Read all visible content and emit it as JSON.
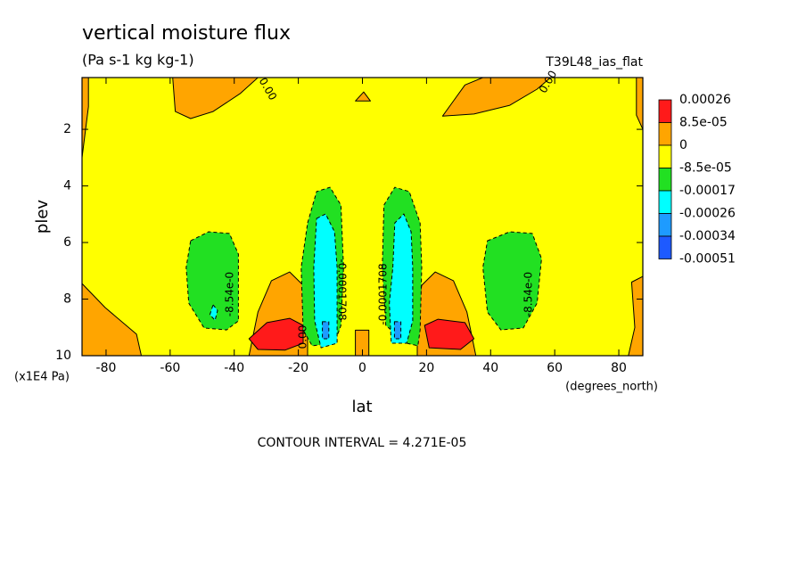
{
  "chart_data": {
    "type": "contour",
    "title": "vertical moisture flux",
    "subtitle": "(Pa s-1 kg kg-1)",
    "dataset": "T39L48_ias_flat",
    "x_label": "lat",
    "x_units": "(degrees_north)",
    "y_label": "plev",
    "y_units": "(x1E4 Pa)",
    "footer": "CONTOUR INTERVAL = 4.271E-05",
    "xlim": [
      -87.5,
      87.5
    ],
    "ylim": [
      10,
      0.17
    ],
    "xticks": [
      -80,
      -60,
      -40,
      -20,
      0,
      20,
      40,
      60,
      80
    ],
    "yticks": [
      2,
      4,
      6,
      8,
      10
    ],
    "levels": [
      0.00026,
      {
        "value": 8.5e-05,
        "label": "8.5e-05"
      },
      0,
      {
        "value": -8.5e-05,
        "label": "-8.5e-05"
      },
      -0.00017,
      -0.00026,
      -0.00034,
      -0.00051
    ],
    "colors": [
      "#ff1a1a",
      "#ffa500",
      "#ffff00",
      "#22e022",
      "#00ffff",
      "#1e9bff",
      "#1e5aff"
    ],
    "background_level": -8.5e-05,
    "regions": [
      {
        "level": 0,
        "points": [
          [
            -87.5,
            0.17
          ],
          [
            -85.5,
            0.17
          ],
          [
            -85.5,
            1.2
          ],
          [
            -87.5,
            3.0
          ]
        ]
      },
      {
        "level": 0,
        "points": [
          [
            -59.2,
            0.17
          ],
          [
            -32.6,
            0.17
          ],
          [
            -38.2,
            0.74
          ],
          [
            -46.6,
            1.37
          ],
          [
            -53.6,
            1.62
          ],
          [
            -58.4,
            1.37
          ]
        ]
      },
      {
        "level": 0,
        "points": [
          [
            25,
            1.53
          ],
          [
            32,
            0.43
          ],
          [
            37.6,
            0.17
          ],
          [
            58.7,
            0.17
          ],
          [
            54.5,
            0.58
          ],
          [
            46,
            1.15
          ],
          [
            34.8,
            1.46
          ]
        ]
      },
      {
        "level": 0,
        "points": [
          [
            85.5,
            0.17
          ],
          [
            87.5,
            0.17
          ],
          [
            87.5,
            2.0
          ],
          [
            85.5,
            1.5
          ]
        ]
      },
      {
        "level": 0,
        "points": [
          [
            84,
            7.4
          ],
          [
            87.5,
            7.2
          ],
          [
            87.5,
            10
          ],
          [
            83,
            10
          ],
          [
            85,
            9
          ]
        ]
      },
      {
        "level": 0,
        "points": [
          [
            -87.5,
            7.45
          ],
          [
            -80.3,
            8.3
          ],
          [
            -70.5,
            9.24
          ],
          [
            -69,
            10
          ],
          [
            -87.5,
            10
          ]
        ]
      },
      {
        "level": 0,
        "points": [
          [
            -2.2,
            1.0
          ],
          [
            2.5,
            1.0
          ],
          [
            0.4,
            0.68
          ]
        ]
      },
      {
        "level": 0,
        "points": [
          [
            -35.4,
            10
          ],
          [
            -32.6,
            8.46
          ],
          [
            -28.4,
            7.35
          ],
          [
            -22.7,
            7.04
          ],
          [
            -18.5,
            7.51
          ],
          [
            -17.1,
            8.46
          ],
          [
            -17.1,
            10
          ]
        ]
      },
      {
        "level": 0,
        "points": [
          [
            17.1,
            10
          ],
          [
            17.1,
            8.46
          ],
          [
            18.5,
            7.51
          ],
          [
            22.7,
            7.04
          ],
          [
            28.4,
            7.35
          ],
          [
            32.6,
            8.46
          ],
          [
            35.4,
            10
          ]
        ]
      },
      {
        "level": 0,
        "points": [
          [
            -2.2,
            9.1
          ],
          [
            2,
            9.1
          ],
          [
            2,
            10
          ],
          [
            -2.2,
            10
          ]
        ]
      },
      {
        "level": 8.5e-05,
        "points": [
          [
            -35.4,
            9.4
          ],
          [
            -29.8,
            8.83
          ],
          [
            -22.7,
            8.68
          ],
          [
            -18.5,
            8.93
          ],
          [
            -18.5,
            9.56
          ],
          [
            -24.1,
            9.8
          ],
          [
            -32.6,
            9.78
          ]
        ]
      },
      {
        "level": 8.5e-05,
        "points": [
          [
            19.4,
            8.93
          ],
          [
            23.6,
            8.71
          ],
          [
            32,
            8.83
          ],
          [
            34.8,
            9.4
          ],
          [
            30.6,
            9.78
          ],
          [
            20.8,
            9.72
          ]
        ]
      },
      {
        "level": -0.00017,
        "points": [
          [
            -53.6,
            5.94
          ],
          [
            -48,
            5.62
          ],
          [
            -41.5,
            5.68
          ],
          [
            -38.7,
            6.41
          ],
          [
            -38.7,
            8.77
          ],
          [
            -42.4,
            9.09
          ],
          [
            -49.4,
            9.02
          ],
          [
            -54.2,
            8.14
          ],
          [
            -55,
            6.88
          ]
        ]
      },
      {
        "level": -0.00017,
        "points": [
          [
            39,
            5.94
          ],
          [
            46,
            5.62
          ],
          [
            53,
            5.68
          ],
          [
            55.9,
            6.57
          ],
          [
            54.5,
            8.14
          ],
          [
            50.2,
            9.02
          ],
          [
            43.2,
            9.09
          ],
          [
            39,
            8.46
          ],
          [
            37.6,
            6.88
          ]
        ]
      },
      {
        "level": -0.00017,
        "points": [
          [
            -17.1,
            5.31
          ],
          [
            -14.3,
            4.2
          ],
          [
            -10.1,
            4.05
          ],
          [
            -6.7,
            4.68
          ],
          [
            -5.9,
            6.88
          ],
          [
            -6.7,
            8.93
          ],
          [
            -8.7,
            9.56
          ],
          [
            -15.7,
            9.65
          ],
          [
            -18.5,
            9.09
          ],
          [
            -19.1,
            6.88
          ]
        ]
      },
      {
        "level": -0.00017,
        "points": [
          [
            6.2,
            6.88
          ],
          [
            6.7,
            4.68
          ],
          [
            10.1,
            4.05
          ],
          [
            14.6,
            4.2
          ],
          [
            18,
            5.31
          ],
          [
            18.5,
            6.88
          ],
          [
            18,
            9.09
          ],
          [
            17.3,
            9.65
          ],
          [
            13.8,
            9.56
          ],
          [
            7.3,
            8.93
          ]
        ]
      },
      {
        "level": -0.00026,
        "points": [
          [
            -46.6,
            8.2
          ],
          [
            -45.2,
            8.4
          ],
          [
            -46,
            8.75
          ],
          [
            -47.6,
            8.55
          ]
        ]
      },
      {
        "level": -0.00026,
        "points": [
          [
            -14.3,
            5.15
          ],
          [
            -11.5,
            4.99
          ],
          [
            -8.7,
            5.62
          ],
          [
            -7.9,
            6.88
          ],
          [
            -7.9,
            9.56
          ],
          [
            -12.9,
            9.72
          ],
          [
            -14.9,
            8.77
          ],
          [
            -15.2,
            6.88
          ]
        ]
      },
      {
        "level": -0.00026,
        "points": [
          [
            9.5,
            6.88
          ],
          [
            10.1,
            5.31
          ],
          [
            12.9,
            4.99
          ],
          [
            15.2,
            5.62
          ],
          [
            15.7,
            6.88
          ],
          [
            15.7,
            8.77
          ],
          [
            13.8,
            9.56
          ],
          [
            9,
            9.56
          ],
          [
            8.4,
            8.14
          ]
        ]
      },
      {
        "level": -0.00034,
        "points": [
          [
            -12.5,
            8.8
          ],
          [
            -10.5,
            8.8
          ],
          [
            -10.5,
            9.4
          ],
          [
            -12.5,
            9.4
          ]
        ]
      },
      {
        "level": -0.00034,
        "points": [
          [
            10,
            8.8
          ],
          [
            12,
            8.8
          ],
          [
            12,
            9.4
          ],
          [
            10,
            9.4
          ]
        ]
      }
    ],
    "contour_labels": [
      "0.00",
      "0.00",
      "-8.54e-0",
      "-8.54e-0",
      "0.00",
      "-0.0001708",
      "-0.0001708"
    ]
  }
}
